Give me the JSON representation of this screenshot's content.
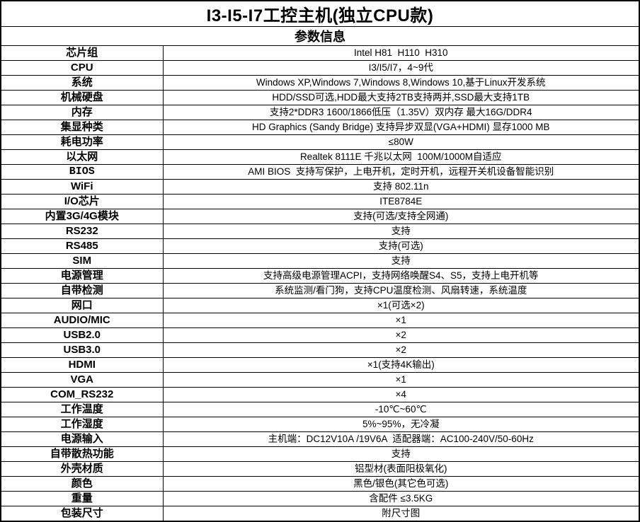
{
  "title": "I3-I5-I7工控主机(独立CPU款)",
  "subtitle": "参数信息",
  "colors": {
    "border": "#000000",
    "text": "#000000",
    "background": "#ffffff"
  },
  "rows": [
    {
      "label": "芯片组",
      "value": "Intel H81  H110  H310"
    },
    {
      "label": "CPU",
      "value": "I3/I5/I7，4~9代"
    },
    {
      "label": "系统",
      "value": "Windows XP,Windows 7,Windows 8,Windows 10,基于Linux开发系统"
    },
    {
      "label": "机械硬盘",
      "value": "HDD/SSD可选,HDD最大支持2TB支持两并,SSD最大支持1TB"
    },
    {
      "label": "内存",
      "value": "支持2*DDR3 1600/1866低压（1.35V）双内存 最大16G/DDR4"
    },
    {
      "label": "集显种类",
      "value": "HD Graphics (Sandy Bridge) 支持异步双显(VGA+HDMI) 显存1000 MB"
    },
    {
      "label": "耗电功率",
      "value": "≤80W"
    },
    {
      "label": "以太网",
      "value": "Realtek 8111E 千兆以太网  100M/1000M自适应"
    },
    {
      "label": "BIOS",
      "value": "AMI BIOS  支持写保护，上电开机，定时开机，远程开关机设备智能识别",
      "label_style": "mono"
    },
    {
      "label": "WiFi",
      "value": "支持 802.11n"
    },
    {
      "label": "I/O芯片",
      "value": "ITE8784E"
    },
    {
      "label": "内置3G/4G模块",
      "value": "支持(可选/支持全网通)"
    },
    {
      "label": "RS232",
      "value": "支持"
    },
    {
      "label": "RS485",
      "value": "支持(可选)"
    },
    {
      "label": "SIM",
      "value": "支持"
    },
    {
      "label": "电源管理",
      "value": "支持高级电源管理ACPI，支持网络唤醒S4、S5，支持上电开机等"
    },
    {
      "label": "自带检测",
      "value": "系统监测/看门狗，支持CPU温度检测、风扇转速，系统温度"
    },
    {
      "label": "网口",
      "value": "×1(可选×2)"
    },
    {
      "label": "AUDIO/MIC",
      "value": "×1"
    },
    {
      "label": "USB2.0",
      "value": "×2"
    },
    {
      "label": "USB3.0",
      "value": "×2"
    },
    {
      "label": "HDMI",
      "value": "×1(支持4K输出)"
    },
    {
      "label": "VGA",
      "value": "×1"
    },
    {
      "label": "COM_RS232",
      "value": "×4"
    },
    {
      "label": "工作温度",
      "value": "-10℃~60℃"
    },
    {
      "label": "工作湿度",
      "value": "5%~95%，无冷凝"
    },
    {
      "label": "电源输入",
      "value": "主机端：DC12V10A /19V6A  适配器端：AC100-240V/50-60Hz"
    },
    {
      "label": "自带散热功能",
      "value": "支持"
    },
    {
      "label": "外壳材质",
      "value": "铝型材(表面阳极氧化)"
    },
    {
      "label": "颜色",
      "value": "黑色/银色(其它色可选)"
    },
    {
      "label": "重量",
      "value": "含配件 ≤3.5KG"
    },
    {
      "label": "包装尺寸",
      "value": "附尺寸图"
    }
  ]
}
